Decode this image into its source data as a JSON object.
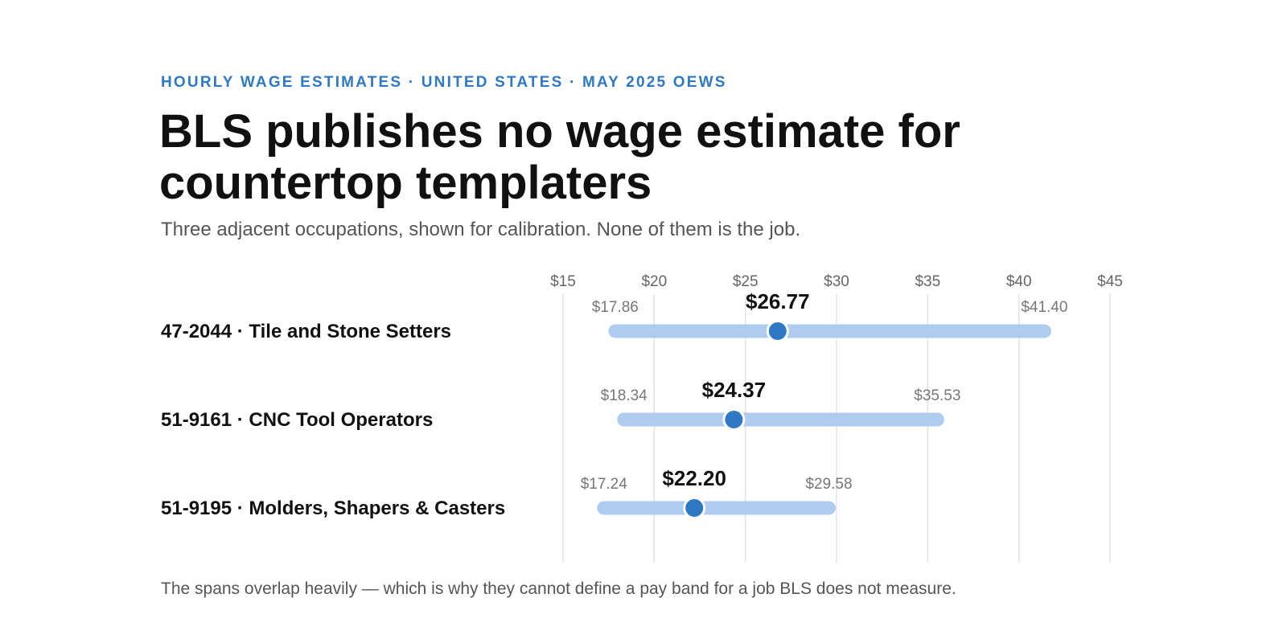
{
  "header": {
    "eyebrow": "HOURLY WAGE ESTIMATES · UNITED STATES · MAY 2025 OEWS",
    "title": "BLS publishes no wage estimate for countertop templaters",
    "subtitle": "Three adjacent occupations, shown for calibration. None of them is the job."
  },
  "footnote": "The spans overlap heavily — which is why they cannot define a pay band for a job BLS does not measure.",
  "colors": {
    "accent": "#2f78c4",
    "range_bar": "#aecdee",
    "median_dot": "#2f78c4",
    "gridline": "#e3e3e3"
  },
  "chart_data": {
    "type": "range-dot",
    "xlim": [
      15,
      45
    ],
    "ticks": [
      15,
      20,
      25,
      30,
      35,
      40,
      45
    ],
    "tick_labels": [
      "$15",
      "$20",
      "$25",
      "$30",
      "$35",
      "$40",
      "$45"
    ],
    "grid": true,
    "series": [
      {
        "label": "47-2044 · Tile and Stone Setters",
        "low": 17.86,
        "median": 26.77,
        "high": 41.4,
        "low_label": "$17.86",
        "median_label": "$26.77",
        "high_label": "$41.40"
      },
      {
        "label": "51-9161 · CNC Tool Operators",
        "low": 18.34,
        "median": 24.37,
        "high": 35.53,
        "low_label": "$18.34",
        "median_label": "$24.37",
        "high_label": "$35.53"
      },
      {
        "label": "51-9195 · Molders, Shapers & Casters",
        "low": 17.24,
        "median": 22.2,
        "high": 29.58,
        "low_label": "$17.24",
        "median_label": "$22.20",
        "high_label": "$29.58"
      }
    ]
  }
}
